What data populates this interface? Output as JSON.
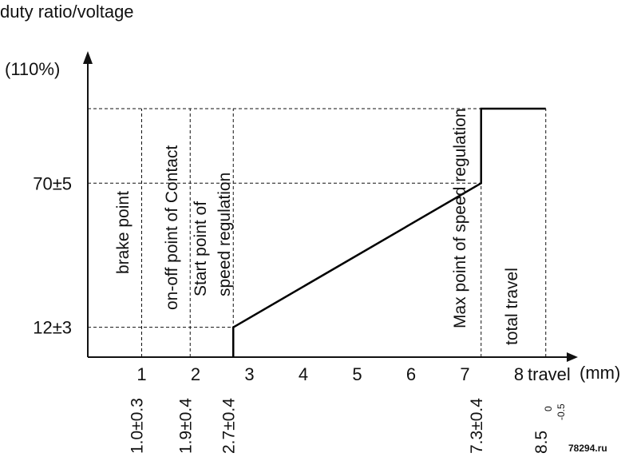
{
  "chart_data": {
    "type": "line",
    "ylabel": "duty ratio/voltage",
    "xlabel": "travel",
    "xunit": "(mm)",
    "y_top_label": "(110%)",
    "xlim": [
      0,
      9
    ],
    "ylim": [
      0,
      110
    ],
    "x_ticks": [
      1,
      2,
      3,
      4,
      5,
      6,
      7,
      8
    ],
    "y_ticks": [
      {
        "value": 12,
        "label": "12±3"
      },
      {
        "value": 70,
        "label": "70±5"
      }
    ],
    "series": [
      {
        "x": [
          2.7,
          2.7,
          7.3,
          7.3,
          8.5
        ],
        "y": [
          0,
          12,
          70,
          100,
          100
        ]
      }
    ],
    "markers": [
      {
        "x": 1.0,
        "label": "1.0±0.3",
        "zone_label": [
          "brake point"
        ]
      },
      {
        "x": 1.9,
        "label": "1.9±0.4",
        "zone_label": [
          "on-off point of Contact"
        ]
      },
      {
        "x": 2.7,
        "label": "2.7±0.4",
        "zone_label": [
          "Start point of",
          "speed regulation"
        ]
      },
      {
        "x": 7.3,
        "label": "7.3±0.4",
        "zone_label": [
          "Max point of speed regulation"
        ]
      },
      {
        "x": 8.5,
        "label": "8.5",
        "tol_upper": "0",
        "tol_lower": "-0.5",
        "zone_label": [
          "total travel"
        ]
      }
    ],
    "grid": false,
    "legend": "none"
  },
  "watermark": "78294.ru"
}
